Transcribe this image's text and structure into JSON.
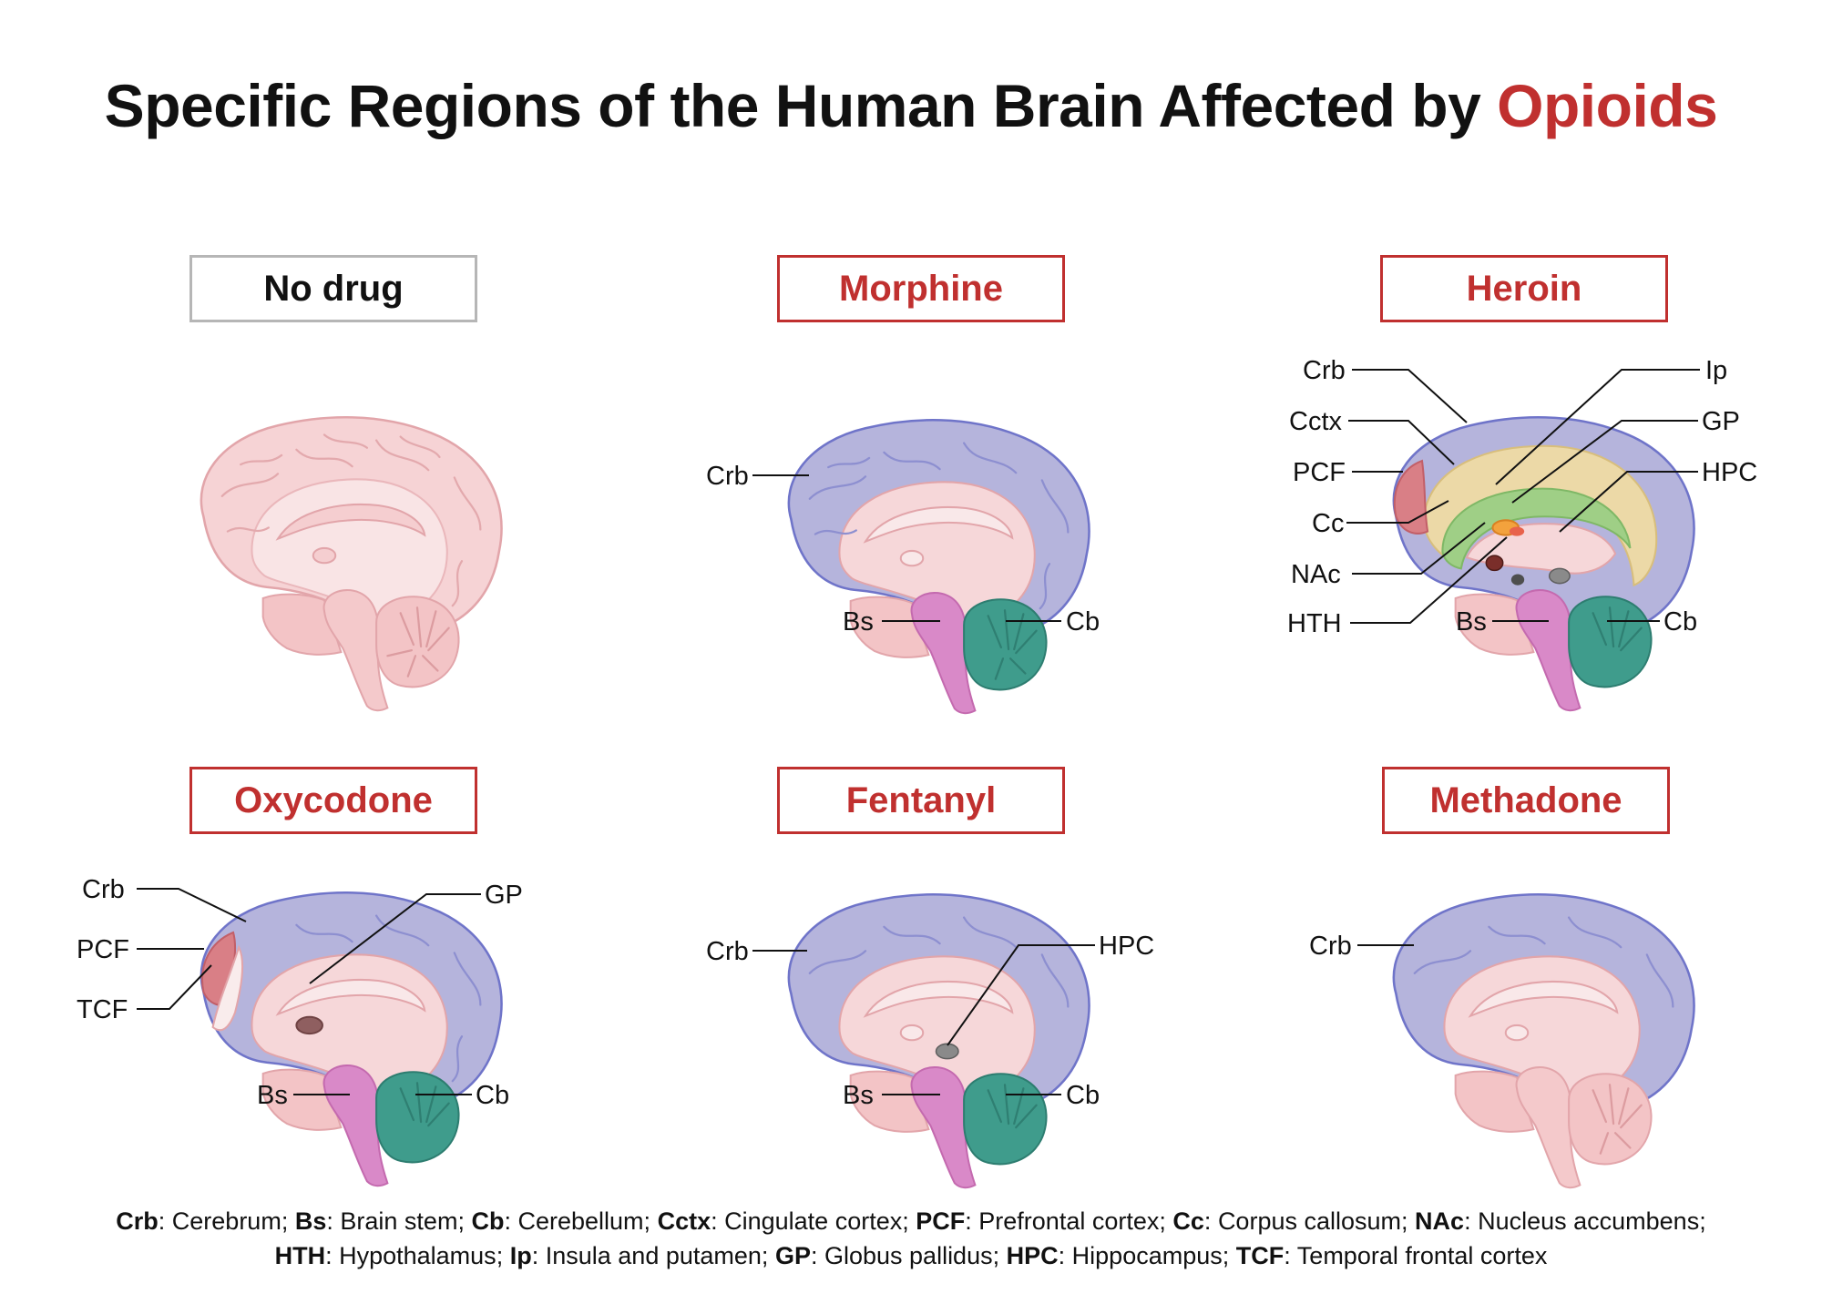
{
  "title": {
    "main": "Specific Regions of the Human Brain Affected by",
    "accent": "Opioids"
  },
  "colors": {
    "accent": "#c0302f",
    "neutral_border": "#b6b6b6",
    "cerebrum": "#b5b4dc",
    "brainstem": "#d989c8",
    "cerebellum": "#3f9c8c",
    "healthy_pink": "#f3c4c6",
    "cingulate": "#ecd9a7",
    "prefrontal": "#d97f86",
    "corpus_callosum": "#9fcf86",
    "hippocampus": "#8a8a8a"
  },
  "panels": [
    {
      "id": "no-drug",
      "label": "No drug",
      "annotations": []
    },
    {
      "id": "morphine",
      "label": "Morphine",
      "annotations": [
        "Crb",
        "Bs",
        "Cb"
      ]
    },
    {
      "id": "heroin",
      "label": "Heroin",
      "annotations": [
        "Crb",
        "Cctx",
        "PCF",
        "Cc",
        "NAc",
        "HTH",
        "Ip",
        "GP",
        "HPC",
        "Bs",
        "Cb"
      ]
    },
    {
      "id": "oxycodone",
      "label": "Oxycodone",
      "annotations": [
        "Crb",
        "PCF",
        "TCF",
        "GP",
        "Bs",
        "Cb"
      ]
    },
    {
      "id": "fentanyl",
      "label": "Fentanyl",
      "annotations": [
        "Crb",
        "HPC",
        "Bs",
        "Cb"
      ]
    },
    {
      "id": "methadone",
      "label": "Methadone",
      "annotations": [
        "Crb"
      ]
    }
  ],
  "legend": {
    "items": [
      {
        "abbr": "Crb",
        "name": "Cerebrum"
      },
      {
        "abbr": "Bs",
        "name": "Brain stem"
      },
      {
        "abbr": "Cb",
        "name": "Cerebellum"
      },
      {
        "abbr": "Cctx",
        "name": "Cingulate cortex"
      },
      {
        "abbr": "PCF",
        "name": "Prefrontal cortex"
      },
      {
        "abbr": "Cc",
        "name": "Corpus callosum"
      },
      {
        "abbr": "NAc",
        "name": "Nucleus accumbens"
      },
      {
        "abbr": "HTH",
        "name": "Hypothalamus"
      },
      {
        "abbr": "Ip",
        "name": "Insula and putamen"
      },
      {
        "abbr": "GP",
        "name": "Globus pallidus"
      },
      {
        "abbr": "HPC",
        "name": "Hippocampus"
      },
      {
        "abbr": "TCF",
        "name": "Temporal frontal cortex"
      }
    ]
  }
}
